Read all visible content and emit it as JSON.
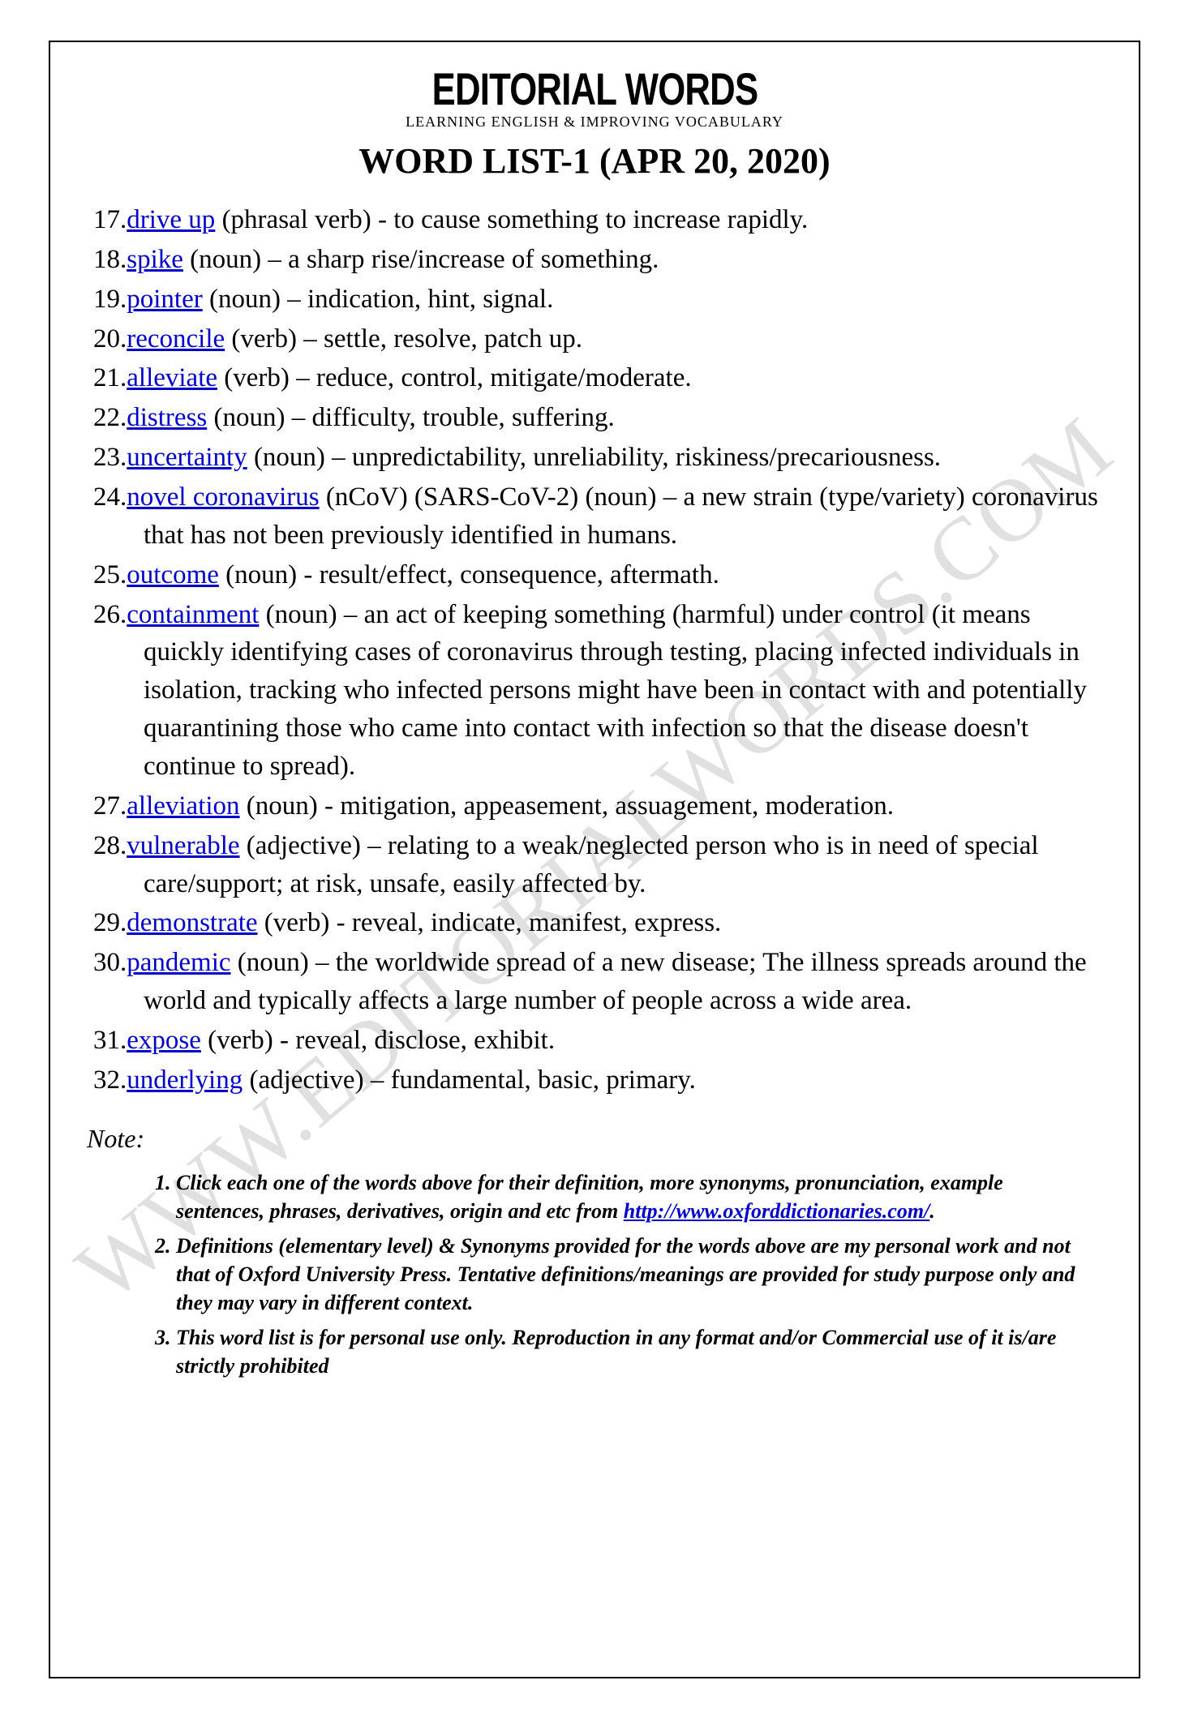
{
  "masthead": {
    "title": "EDITORIAL WORDS",
    "subtitle": "LEARNING ENGLISH & IMPROVING VOCABULARY"
  },
  "page_title": "WORD LIST-1 (APR 20, 2020)",
  "watermark": "WWW.EDITORIALWORDS.COM",
  "colors": {
    "link": "#0000cc",
    "text": "#000000",
    "watermark": "rgba(0,0,0,0.12)",
    "background": "#ffffff",
    "border": "#000000"
  },
  "typography": {
    "body_family": "Times New Roman",
    "body_size_pt": 25,
    "title_size_pt": 33,
    "mast_title_family": "Arial Black"
  },
  "start_number": 17,
  "entries": [
    {
      "n": "17.",
      "term": "drive up",
      "pos": "(phrasal verb)",
      "sep": " - ",
      "def": "to cause something to increase rapidly."
    },
    {
      "n": "18.",
      "term": "spike",
      "pos": "(noun)",
      "sep": " – ",
      "def": "a sharp rise/increase of something."
    },
    {
      "n": "19.",
      "term": "pointer",
      "pos": "(noun)",
      "sep": " – ",
      "def": "indication, hint, signal."
    },
    {
      "n": "20.",
      "term": "reconcile",
      "pos": "(verb)",
      "sep": " – ",
      "def": "settle, resolve, patch up."
    },
    {
      "n": "21.",
      "term": "alleviate",
      "pos": "(verb)",
      "sep": " – ",
      "def": "reduce, control, mitigate/moderate."
    },
    {
      "n": "22.",
      "term": "distress",
      "pos": "(noun)",
      "sep": " – ",
      "def": "difficulty, trouble, suffering."
    },
    {
      "n": "23.",
      "term": "uncertainty",
      "pos": "(noun)",
      "sep": " – ",
      "def": "unpredictability, unreliability, riskiness/precariousness."
    },
    {
      "n": "24.",
      "term": "novel coronavirus",
      "pos": "(nCoV) (SARS-CoV-2) (noun)",
      "sep": " – ",
      "def": "a new strain (type/variety) coronavirus that has not been previously identified in humans."
    },
    {
      "n": "25.",
      "term": "outcome",
      "pos": "(noun)",
      "sep": " - ",
      "def": "result/effect, consequence, aftermath."
    },
    {
      "n": "26.",
      "term": "containment",
      "pos": "(noun)",
      "sep": " – ",
      "def": "an act of keeping something (harmful) under control (it means quickly identifying cases of coronavirus through testing, placing infected individuals in isolation, tracking who infected persons might have been in contact with and potentially quarantining those who came into contact with infection so that the disease doesn't continue to spread)."
    },
    {
      "n": "27.",
      "term": "alleviation",
      "pos": "(noun)",
      "sep": " - ",
      "def": "mitigation, appeasement, assuagement, moderation."
    },
    {
      "n": "28.",
      "term": "vulnerable",
      "pos": "(adjective)",
      "sep": " – ",
      "def": "relating to a weak/neglected person who is in need of special care/support; at risk, unsafe, easily affected by."
    },
    {
      "n": "29.",
      "term": "demonstrate",
      "pos": "(verb)",
      "sep": " - ",
      "def": "reveal, indicate, manifest, express."
    },
    {
      "n": "30.",
      "term": "pandemic",
      "pos": "(noun)",
      "sep": " – ",
      "def": "the worldwide spread of a new disease; The illness spreads around the world and typically affects a large number of people across a wide area."
    },
    {
      "n": "31.",
      "term": "expose",
      "pos": "(verb)",
      "sep": " - ",
      "def": "reveal, disclose, exhibit."
    },
    {
      "n": "32.",
      "term": "underlying",
      "pos": "(adjective)",
      "sep": " – ",
      "def": "fundamental, basic, primary."
    }
  ],
  "note_label": "Note:",
  "notes": [
    {
      "pre": "Click each one of the words above for their definition, more synonyms, pronunciation, example sentences, phrases, derivatives, origin and etc from ",
      "link_text": "http://www.oxforddictionaries.com/",
      "post": "."
    },
    {
      "text": "Definitions (elementary level) & Synonyms provided for the words above are my personal work and not that of Oxford University Press. Tentative definitions/meanings are provided for study purpose only and they may vary in different context."
    },
    {
      "text": "This word list is for personal use only. Reproduction in any format and/or Commercial use of it is/are strictly prohibited"
    }
  ]
}
